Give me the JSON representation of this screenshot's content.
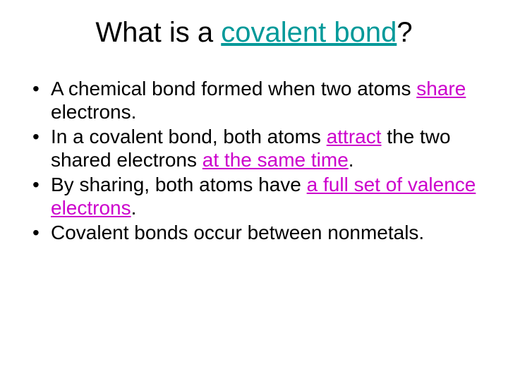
{
  "colors": {
    "background": "#ffffff",
    "text": "#000000",
    "title_accent": "#009999",
    "underline_accent": "#cc00cc"
  },
  "typography": {
    "title_fontsize": 40,
    "body_fontsize": 28,
    "font_family": "Arial"
  },
  "title": {
    "pre": "What is a ",
    "accent": "covalent bond",
    "post": "?"
  },
  "bullets": [
    {
      "segments": [
        {
          "text": "A chemical bond formed when two atoms ",
          "style": "plain"
        },
        {
          "text": "share",
          "style": "accent-underline"
        },
        {
          "text": " electrons.",
          "style": "plain"
        }
      ]
    },
    {
      "segments": [
        {
          "text": "In a covalent bond, both atoms ",
          "style": "plain"
        },
        {
          "text": "attract",
          "style": "accent-underline"
        },
        {
          "text": " the two shared electrons ",
          "style": "plain"
        },
        {
          "text": "at the same time",
          "style": "accent-underline"
        },
        {
          "text": ".",
          "style": "plain"
        }
      ]
    },
    {
      "segments": [
        {
          "text": "By sharing, both atoms have ",
          "style": "plain"
        },
        {
          "text": "a full set of valence electrons",
          "style": "accent-underline"
        },
        {
          "text": ".",
          "style": "plain"
        }
      ]
    },
    {
      "segments": [
        {
          "text": "Covalent bonds occur between nonmetals.",
          "style": "plain"
        }
      ]
    }
  ]
}
